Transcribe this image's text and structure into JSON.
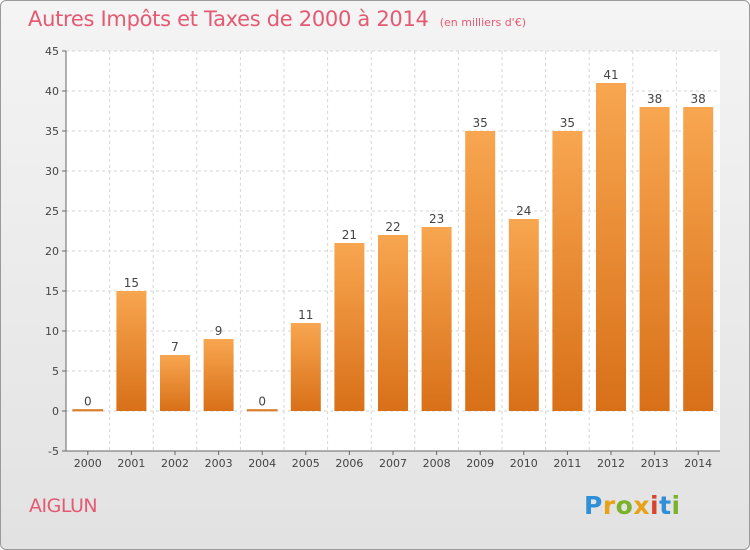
{
  "header": {
    "title": "Autres Impôts et Taxes de 2000 à 2014",
    "unit": "(en milliers d'€)"
  },
  "footer": {
    "commune": "AIGLUN",
    "logo_letters": [
      "P",
      "r",
      "o",
      "x",
      "i",
      "t",
      "i"
    ],
    "logo_colors": [
      "#2f8fd8",
      "#e8a21a",
      "#7ab22c",
      "#e8a21a",
      "#d8452f",
      "#2f8fd8",
      "#7ab22c"
    ]
  },
  "chart_data": {
    "type": "bar",
    "categories": [
      "2000",
      "2001",
      "2002",
      "2003",
      "2004",
      "2005",
      "2006",
      "2007",
      "2008",
      "2009",
      "2010",
      "2011",
      "2012",
      "2013",
      "2014"
    ],
    "values": [
      0,
      15,
      7,
      9,
      0,
      11,
      21,
      22,
      23,
      35,
      24,
      35,
      41,
      38,
      38
    ],
    "data_labels": [
      "0",
      "15",
      "7",
      "9",
      "0",
      "11",
      "21",
      "22",
      "23",
      "35",
      "24",
      "35",
      "41",
      "38",
      "38"
    ],
    "ylim": [
      -5,
      45
    ],
    "yticks": [
      "-5",
      "0",
      "5",
      "10",
      "15",
      "20",
      "25",
      "30",
      "35",
      "40",
      "45"
    ],
    "grid": true,
    "bar_color_top": "#f8a650",
    "bar_color_bottom": "#d87018",
    "title": "Autres Impôts et Taxes de 2000 à 2014",
    "xlabel": "",
    "ylabel": ""
  }
}
